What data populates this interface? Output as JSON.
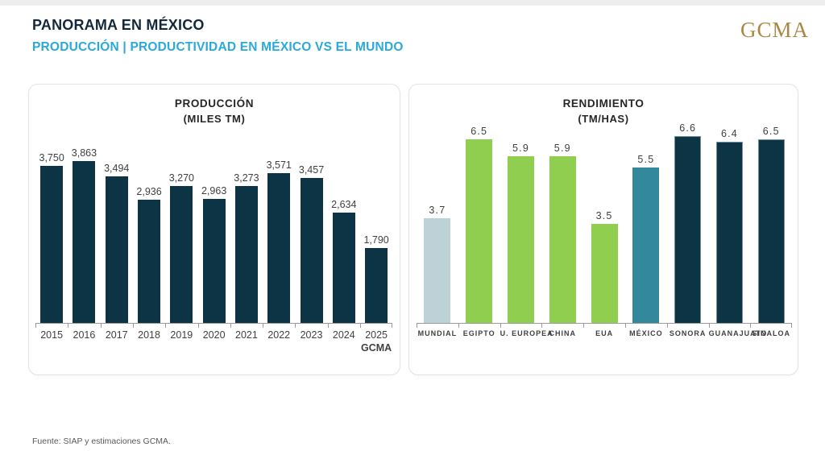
{
  "header": {
    "title": "PANORAMA EN MÉXICO",
    "subtitle": "PRODUCCIÓN | PRODUCTIVIDAD EN MÉXICO VS EL MUNDO",
    "logo_text": "GCMA"
  },
  "footer": {
    "source": "Fuente: SIAP y estimaciones GCMA."
  },
  "colors": {
    "title_navy": "#14283c",
    "subtitle_cyan": "#2aa9db",
    "logo_gold": "#ab8743",
    "bar_navy": "#0d3444",
    "bar_green": "#8fce4e",
    "bar_teal": "#33899b",
    "bar_lightblue": "#bdd2d6",
    "axis_gray": "#9b9b9b",
    "label_gray": "#404040"
  },
  "chart_data": [
    {
      "type": "bar",
      "title": "PRODUCCIÓN",
      "subtitle": "(MILES TM)",
      "categories": [
        "2015",
        "2016",
        "2017",
        "2018",
        "2019",
        "2020",
        "2021",
        "2022",
        "2023",
        "2024",
        "2025"
      ],
      "category_sublabels": [
        "",
        "",
        "",
        "",
        "",
        "",
        "",
        "",
        "",
        "",
        "GCMA"
      ],
      "values": [
        3750,
        3863,
        3494,
        2936,
        3270,
        2963,
        3273,
        3571,
        3457,
        2634,
        1790
      ],
      "value_labels": [
        "3,750",
        "3,863",
        "3,494",
        "2,936",
        "3,270",
        "2,963",
        "3,273",
        "3,571",
        "3,457",
        "2,634",
        "1,790"
      ],
      "bar_colors": [
        "#0d3444",
        "#0d3444",
        "#0d3444",
        "#0d3444",
        "#0d3444",
        "#0d3444",
        "#0d3444",
        "#0d3444",
        "#0d3444",
        "#0d3444",
        "#0d3444"
      ],
      "ylim": [
        0,
        3863
      ],
      "grid": false,
      "legend": null
    },
    {
      "type": "bar",
      "title": "RENDIMIENTO",
      "subtitle": "(TM/HAS)",
      "categories": [
        "MUNDIAL",
        "EGIPTO",
        "U. EUROPEA",
        "CHINA",
        "EUA",
        "MÉXICO",
        "SONORA",
        "GUANAJUATO",
        "SINALOA"
      ],
      "category_sublabels": [
        "",
        "",
        "",
        "",
        "",
        "",
        "",
        "",
        ""
      ],
      "values": [
        3.7,
        6.5,
        5.9,
        5.9,
        3.5,
        5.5,
        6.6,
        6.4,
        6.5
      ],
      "value_labels": [
        "3.7",
        "6.5",
        "5.9",
        "5.9",
        "3.5",
        "5.5",
        "6.6",
        "6.4",
        "6.5"
      ],
      "bar_colors": [
        "#bdd2d6",
        "#8fce4e",
        "#8fce4e",
        "#8fce4e",
        "#8fce4e",
        "#33899b",
        "#0d3444",
        "#0d3444",
        "#0d3444"
      ],
      "ylim": [
        0,
        6.6
      ],
      "grid": false,
      "legend": null
    }
  ]
}
